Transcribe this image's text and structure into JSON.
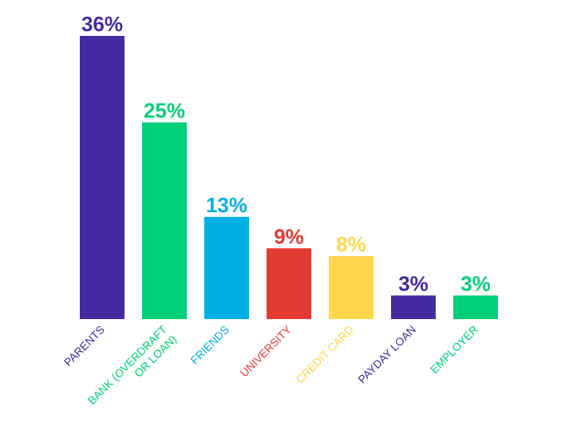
{
  "chart_data": {
    "type": "bar",
    "title": "",
    "xlabel": "",
    "ylabel": "",
    "ylim": [
      0,
      36
    ],
    "grid": false,
    "legend": "none",
    "categories": [
      {
        "lines": [
          "PARENTS"
        ]
      },
      {
        "lines": [
          "BANK (OVERDRAFT",
          "OR LOAN)"
        ]
      },
      {
        "lines": [
          "FRIENDS"
        ]
      },
      {
        "lines": [
          "UNIVERSITY"
        ]
      },
      {
        "lines": [
          "CREDIT CARD"
        ]
      },
      {
        "lines": [
          "PAYDAY LOAN"
        ]
      },
      {
        "lines": [
          "EMPLOYER"
        ]
      }
    ],
    "values": [
      36,
      25,
      13,
      9,
      8,
      3,
      3
    ],
    "value_labels": [
      "36%",
      "25%",
      "13%",
      "9%",
      "8%",
      "3%",
      "3%"
    ],
    "colors": [
      "#452ba0",
      "#00cf7a",
      "#00afe4",
      "#e33a34",
      "#ffd64c",
      "#452ba0",
      "#00cf7a"
    ]
  }
}
